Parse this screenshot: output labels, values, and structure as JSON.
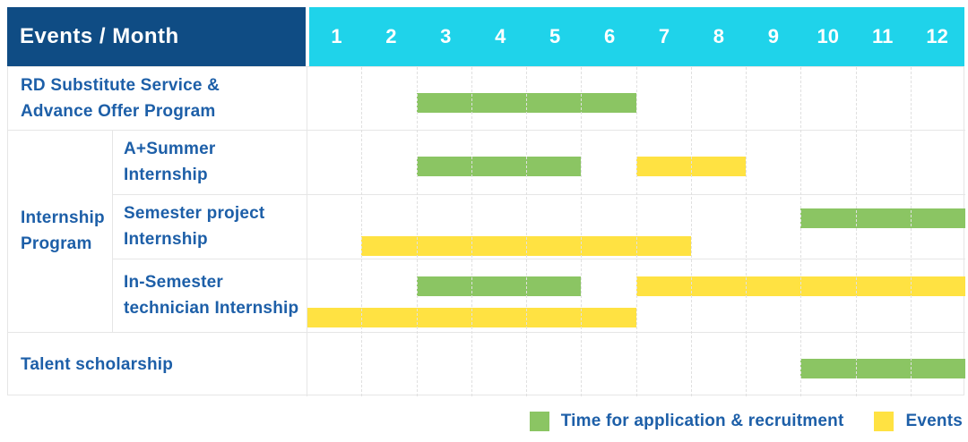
{
  "header": {
    "label": "Events / Month",
    "months": [
      "1",
      "2",
      "3",
      "4",
      "5",
      "6",
      "7",
      "8",
      "9",
      "10",
      "11",
      "12"
    ]
  },
  "rows": [
    {
      "label": "RD Substitute Service &\nAdvance Offer Program",
      "group": null,
      "bars": [
        {
          "type": "application",
          "start": 3,
          "end": 6,
          "lane": "single"
        }
      ]
    },
    {
      "label": "A+Summer\nInternship",
      "group": "Internship\nProgram",
      "bars": [
        {
          "type": "application",
          "start": 3,
          "end": 5,
          "lane": "single"
        },
        {
          "type": "event",
          "start": 7,
          "end": 8,
          "lane": "single"
        }
      ]
    },
    {
      "label": "Semester project\nInternship",
      "group": "Internship Program",
      "bars": [
        {
          "type": "application",
          "start": 10,
          "end": 12,
          "lane": "upper"
        },
        {
          "type": "event",
          "start": 2,
          "end": 7,
          "lane": "lower"
        }
      ]
    },
    {
      "label": "In-Semester\ntechnician Internship",
      "group": "Internship Program",
      "bars": [
        {
          "type": "application",
          "start": 3,
          "end": 5,
          "lane": "upper"
        },
        {
          "type": "event",
          "start": 7,
          "end": 12,
          "lane": "upper"
        },
        {
          "type": "event",
          "start": 1,
          "end": 6,
          "lane": "lower"
        }
      ]
    },
    {
      "label": "Talent scholarship",
      "group": null,
      "bars": [
        {
          "type": "application",
          "start": 10,
          "end": 12,
          "lane": "single"
        }
      ]
    }
  ],
  "legend": [
    {
      "swatch": "green",
      "label": "Time for application & recruitment"
    },
    {
      "swatch": "yellow",
      "label": "Events"
    }
  ],
  "colors": {
    "header_bg": "#0f4c84",
    "months_bg": "#1fd3ea",
    "green": "#8bc563",
    "yellow": "#ffe242",
    "text_blue": "#1d5fa8",
    "grid_line": "#e6e6e6"
  },
  "chart_data": {
    "type": "bar",
    "subtype": "gantt-timeline",
    "title": "Events / Month",
    "x": {
      "label": "Month",
      "ticks": [
        "1",
        "2",
        "3",
        "4",
        "5",
        "6",
        "7",
        "8",
        "9",
        "10",
        "11",
        "12"
      ],
      "range": [
        1,
        12
      ]
    },
    "legend_position": "bottom-right",
    "legend": [
      {
        "name": "Time for application & recruitment",
        "color": "#8bc563"
      },
      {
        "name": "Events",
        "color": "#ffe242"
      }
    ],
    "series": [
      {
        "row": "RD Substitute Service & Advance Offer Program",
        "group": null,
        "segments": [
          {
            "kind": "Time for application & recruitment",
            "start_month": 3,
            "end_month": 6
          }
        ]
      },
      {
        "row": "A+Summer Internship",
        "group": "Internship Program",
        "segments": [
          {
            "kind": "Time for application & recruitment",
            "start_month": 3,
            "end_month": 5
          },
          {
            "kind": "Events",
            "start_month": 7,
            "end_month": 8
          }
        ]
      },
      {
        "row": "Semester project Internship",
        "group": "Internship Program",
        "segments": [
          {
            "kind": "Time for application & recruitment",
            "start_month": 10,
            "end_month": 12
          },
          {
            "kind": "Events",
            "start_month": 2,
            "end_month": 7
          }
        ]
      },
      {
        "row": "In-Semester technician Internship",
        "group": "Internship Program",
        "segments": [
          {
            "kind": "Time for application & recruitment",
            "start_month": 3,
            "end_month": 5
          },
          {
            "kind": "Events",
            "start_month": 7,
            "end_month": 12
          },
          {
            "kind": "Events",
            "start_month": 1,
            "end_month": 6
          }
        ]
      },
      {
        "row": "Talent scholarship",
        "group": null,
        "segments": [
          {
            "kind": "Time for application & recruitment",
            "start_month": 10,
            "end_month": 12
          }
        ]
      }
    ]
  }
}
